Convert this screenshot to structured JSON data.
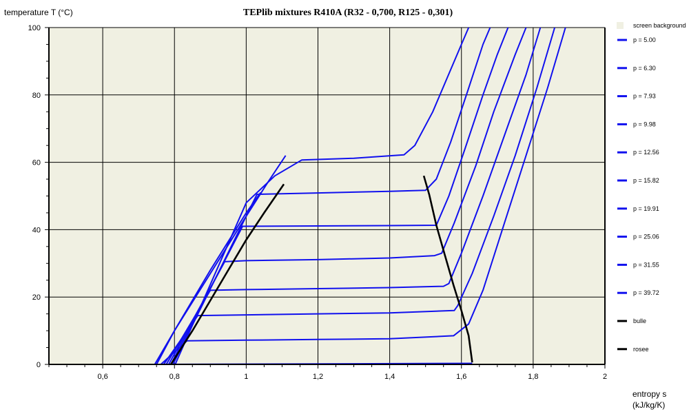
{
  "chart_data": {
    "type": "line",
    "title": "TEPlib mixtures R410A (R32 - 0,700, R125 - 0,301)",
    "ylabel": "temperature  T (°C)",
    "xlabel_line1": "entropy  s",
    "xlabel_line2": "(kJ/kg/K)",
    "xlim": [
      0.45,
      2.0
    ],
    "ylim": [
      0,
      100
    ],
    "x_ticks": [
      0.6,
      0.8,
      1.0,
      1.2,
      1.4,
      1.6,
      1.8,
      2.0
    ],
    "x_tick_labels": [
      "0,6",
      "0,8",
      "1",
      "1,2",
      "1,4",
      "1,6",
      "1,8",
      "2"
    ],
    "y_ticks": [
      0,
      20,
      40,
      60,
      80,
      100
    ],
    "y_tick_labels": [
      "0",
      "20",
      "40",
      "60",
      "80",
      "100"
    ],
    "grid": true,
    "background_color": "#f0f0e2",
    "legend_position": "right",
    "legend_background_label": "screen background",
    "isobar_color": "#1010ee",
    "saturation_color": "#000000",
    "series": [
      {
        "name": "p = 5.00",
        "points": [
          [
            0.753,
            0
          ],
          [
            1.63,
            0.3
          ]
        ]
      },
      {
        "name": "p = 6.30",
        "points": [
          [
            0.762,
            0
          ],
          [
            0.835,
            7.0
          ],
          [
            1.0,
            7.2
          ],
          [
            1.2,
            7.4
          ],
          [
            1.4,
            7.6
          ],
          [
            1.578,
            8.5
          ],
          [
            1.62,
            12
          ],
          [
            1.66,
            22
          ],
          [
            1.72,
            42
          ],
          [
            1.78,
            62
          ],
          [
            1.84,
            82
          ],
          [
            1.89,
            100
          ]
        ]
      },
      {
        "name": "p = 7.93",
        "points": [
          [
            0.77,
            0
          ],
          [
            0.865,
            14.5
          ],
          [
            1.0,
            14.7
          ],
          [
            1.2,
            15.0
          ],
          [
            1.4,
            15.3
          ],
          [
            1.58,
            16.0
          ],
          [
            1.59,
            17.5
          ],
          [
            1.63,
            27
          ],
          [
            1.69,
            44
          ],
          [
            1.75,
            62
          ],
          [
            1.81,
            82
          ],
          [
            1.86,
            100
          ]
        ]
      },
      {
        "name": "p = 9.98",
        "points": [
          [
            0.777,
            0
          ],
          [
            0.9,
            22
          ],
          [
            1.0,
            22.2
          ],
          [
            1.2,
            22.5
          ],
          [
            1.4,
            22.8
          ],
          [
            1.55,
            23.2
          ],
          [
            1.565,
            24
          ],
          [
            1.6,
            33
          ],
          [
            1.66,
            50
          ],
          [
            1.72,
            68
          ],
          [
            1.78,
            86
          ],
          [
            1.82,
            100
          ]
        ]
      },
      {
        "name": "p = 12.56",
        "points": [
          [
            0.784,
            0
          ],
          [
            0.94,
            30.5
          ],
          [
            1.0,
            30.8
          ],
          [
            1.2,
            31.1
          ],
          [
            1.4,
            31.6
          ],
          [
            1.525,
            32.3
          ],
          [
            1.545,
            33
          ],
          [
            1.58,
            42
          ],
          [
            1.64,
            59
          ],
          [
            1.69,
            75
          ],
          [
            1.75,
            92
          ],
          [
            1.78,
            100
          ]
        ]
      },
      {
        "name": "p = 15.82",
        "points": [
          [
            0.79,
            0
          ],
          [
            0.99,
            41
          ],
          [
            1.2,
            41.1
          ],
          [
            1.4,
            41.2
          ],
          [
            1.53,
            41.3
          ],
          [
            1.565,
            50
          ],
          [
            1.61,
            64
          ],
          [
            1.66,
            80
          ],
          [
            1.7,
            92
          ],
          [
            1.73,
            100
          ]
        ]
      },
      {
        "name": "p = 19.91",
        "points": [
          [
            0.796,
            0
          ],
          [
            1.03,
            50.5
          ],
          [
            1.2,
            50.9
          ],
          [
            1.4,
            51.4
          ],
          [
            1.5,
            51.7
          ],
          [
            1.53,
            55
          ],
          [
            1.57,
            66
          ],
          [
            1.62,
            82
          ],
          [
            1.66,
            95
          ],
          [
            1.68,
            100
          ]
        ]
      },
      {
        "name": "p = 25.06",
        "points": [
          [
            0.802,
            0
          ],
          [
            1.0,
            48
          ],
          [
            1.08,
            56
          ],
          [
            1.155,
            60.7
          ],
          [
            1.3,
            61.2
          ],
          [
            1.44,
            62.2
          ],
          [
            1.47,
            65
          ],
          [
            1.52,
            75
          ],
          [
            1.56,
            85
          ],
          [
            1.6,
            95
          ],
          [
            1.62,
            100
          ]
        ]
      },
      {
        "name": "p = 31.55",
        "points": [
          [
            0.745,
            0
          ],
          [
            0.8,
            10
          ],
          [
            0.9,
            27
          ],
          [
            1.0,
            44
          ],
          [
            1.06,
            54
          ],
          [
            1.11,
            62
          ]
        ]
      },
      {
        "name": "p = 39.72",
        "points": [
          [
            0.75,
            0
          ],
          [
            0.8,
            10
          ],
          [
            0.9,
            28
          ],
          [
            1.0,
            45
          ],
          [
            1.04,
            51
          ]
        ]
      },
      {
        "name": "bulle",
        "points": [
          [
            0.79,
            0
          ],
          [
            0.85,
            10
          ],
          [
            0.9,
            19
          ],
          [
            0.95,
            28
          ],
          [
            1.0,
            37
          ],
          [
            1.05,
            45
          ],
          [
            1.105,
            53.5
          ]
        ]
      },
      {
        "name": "rosee",
        "points": [
          [
            1.63,
            0.6
          ],
          [
            1.62,
            8.5
          ],
          [
            1.6,
            16
          ],
          [
            1.578,
            23.5
          ],
          [
            1.555,
            32
          ],
          [
            1.53,
            41.3
          ],
          [
            1.51,
            50.5
          ],
          [
            1.495,
            56
          ]
        ]
      }
    ]
  }
}
